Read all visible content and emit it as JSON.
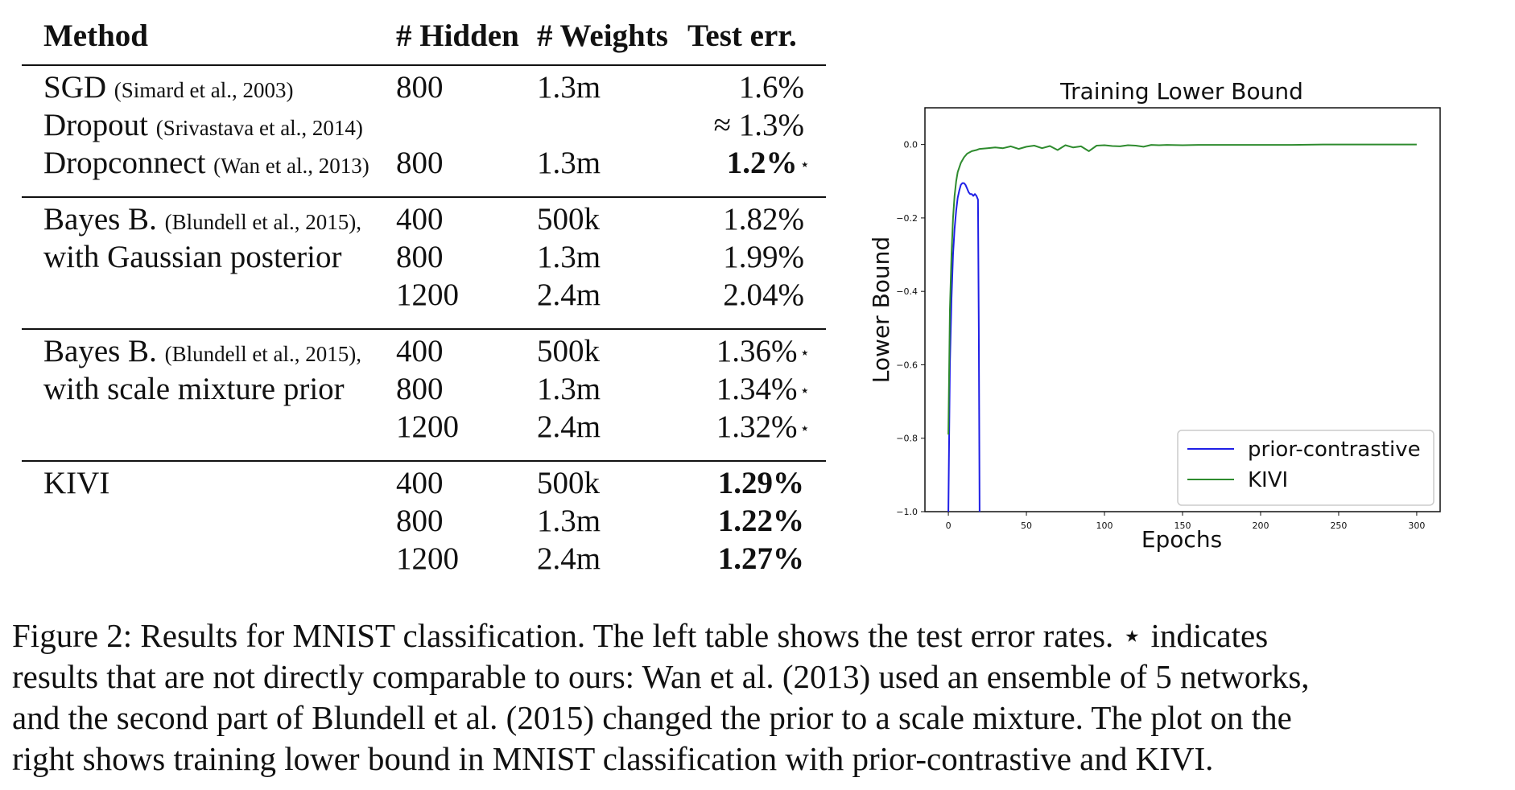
{
  "table": {
    "headers": [
      "Method",
      "# Hidden",
      "# Weights",
      "Test err."
    ],
    "groups": [
      {
        "rows": [
          {
            "method": "SGD",
            "cite": "(Simard et al., 2003)",
            "hidden": "800",
            "weights": "1.3m",
            "err": "1.6%",
            "bold": false,
            "star": false
          },
          {
            "method": "Dropout",
            "cite": "(Srivastava et al., 2014)",
            "hidden": "",
            "weights": "",
            "err": "≈ 1.3%",
            "bold": false,
            "star": false
          },
          {
            "method": "Dropconnect",
            "cite": "(Wan et al., 2013)",
            "hidden": "800",
            "weights": "1.3m",
            "err": "1.2%",
            "bold": true,
            "star": true
          }
        ]
      },
      {
        "rows": [
          {
            "method": "Bayes B.",
            "cite": "(Blundell et al., 2015),",
            "hidden": "400",
            "weights": "500k",
            "err": "1.82%",
            "bold": false,
            "star": false
          },
          {
            "method": "with Gaussian posterior",
            "cite": "",
            "hidden": "800",
            "weights": "1.3m",
            "err": "1.99%",
            "bold": false,
            "star": false
          },
          {
            "method": "",
            "cite": "",
            "hidden": "1200",
            "weights": "2.4m",
            "err": "2.04%",
            "bold": false,
            "star": false
          }
        ]
      },
      {
        "rows": [
          {
            "method": "Bayes B.",
            "cite": "(Blundell et al., 2015),",
            "hidden": "400",
            "weights": "500k",
            "err": "1.36%",
            "bold": false,
            "star": true
          },
          {
            "method": "with scale mixture prior",
            "cite": "",
            "hidden": "800",
            "weights": "1.3m",
            "err": "1.34%",
            "bold": false,
            "star": true
          },
          {
            "method": "",
            "cite": "",
            "hidden": "1200",
            "weights": "2.4m",
            "err": "1.32%",
            "bold": false,
            "star": true
          }
        ]
      },
      {
        "rows": [
          {
            "method": "KIVI",
            "cite": "",
            "hidden": "400",
            "weights": "500k",
            "err": "1.29%",
            "bold": true,
            "star": false
          },
          {
            "method": "",
            "cite": "",
            "hidden": "800",
            "weights": "1.3m",
            "err": "1.22%",
            "bold": true,
            "star": false
          },
          {
            "method": "",
            "cite": "",
            "hidden": "1200",
            "weights": "2.4m",
            "err": "1.27%",
            "bold": true,
            "star": false
          }
        ]
      }
    ],
    "star_symbol": "⋆"
  },
  "chart_data": {
    "type": "line",
    "title": "Training Lower Bound",
    "xlabel": "Epochs",
    "ylabel": "Lower Bound",
    "xlim": [
      -15,
      315
    ],
    "ylim": [
      -1.0,
      0.1
    ],
    "xticks": [
      0,
      50,
      100,
      150,
      200,
      250,
      300
    ],
    "yticks": [
      -1.0,
      -0.8,
      -0.6,
      -0.4,
      -0.2,
      0.0
    ],
    "xtick_labels": [
      "0",
      "50",
      "100",
      "150",
      "200",
      "250",
      "300"
    ],
    "ytick_labels": [
      "−1.0",
      "−0.8",
      "−0.6",
      "−0.4",
      "−0.2",
      "0.0"
    ],
    "grid": false,
    "legend_position": "lower-right",
    "series": [
      {
        "name": "prior-contrastive",
        "color": "#1f1fe6",
        "x": [
          0,
          1,
          2,
          3,
          4,
          5,
          6,
          7,
          8,
          9,
          10,
          11,
          12,
          13,
          14,
          15,
          16,
          17,
          18,
          19,
          19.5,
          20
        ],
        "y": [
          -1.0,
          -0.6,
          -0.42,
          -0.3,
          -0.23,
          -0.18,
          -0.145,
          -0.125,
          -0.11,
          -0.105,
          -0.105,
          -0.11,
          -0.12,
          -0.13,
          -0.135,
          -0.135,
          -0.14,
          -0.135,
          -0.14,
          -0.15,
          -0.5,
          -1.0
        ]
      },
      {
        "name": "KIVI",
        "color": "#2e8b2e",
        "x": [
          0,
          1,
          2,
          3,
          4,
          5,
          6,
          8,
          10,
          12,
          15,
          18,
          20,
          25,
          30,
          35,
          40,
          45,
          50,
          55,
          60,
          65,
          70,
          75,
          80,
          85,
          90,
          95,
          100,
          105,
          110,
          115,
          120,
          125,
          130,
          135,
          140,
          150,
          160,
          170,
          180,
          200,
          220,
          240,
          260,
          280,
          300
        ],
        "y": [
          -0.79,
          -0.45,
          -0.3,
          -0.2,
          -0.14,
          -0.1,
          -0.075,
          -0.05,
          -0.035,
          -0.025,
          -0.018,
          -0.015,
          -0.012,
          -0.01,
          -0.008,
          -0.01,
          -0.005,
          -0.012,
          -0.006,
          -0.003,
          -0.01,
          -0.004,
          -0.015,
          -0.002,
          -0.008,
          -0.005,
          -0.018,
          -0.003,
          -0.002,
          -0.004,
          -0.005,
          -0.002,
          -0.003,
          -0.006,
          -0.001,
          -0.002,
          -0.001,
          -0.002,
          -0.001,
          -0.001,
          -0.001,
          -0.001,
          -0.001,
          0.0,
          0.0,
          0.0,
          0.0
        ]
      }
    ]
  },
  "caption": {
    "lines": [
      "Figure 2: Results for MNIST classification. The left table shows the test error rates. ⋆ indicates",
      "results that are not directly comparable to ours: Wan et al. (2013) used an ensemble of 5 networks,",
      "and the second part of Blundell et al. (2015) changed the prior to a scale mixture. The plot on the",
      "right shows training lower bound in MNIST classification with prior-contrastive and KIVI."
    ]
  }
}
